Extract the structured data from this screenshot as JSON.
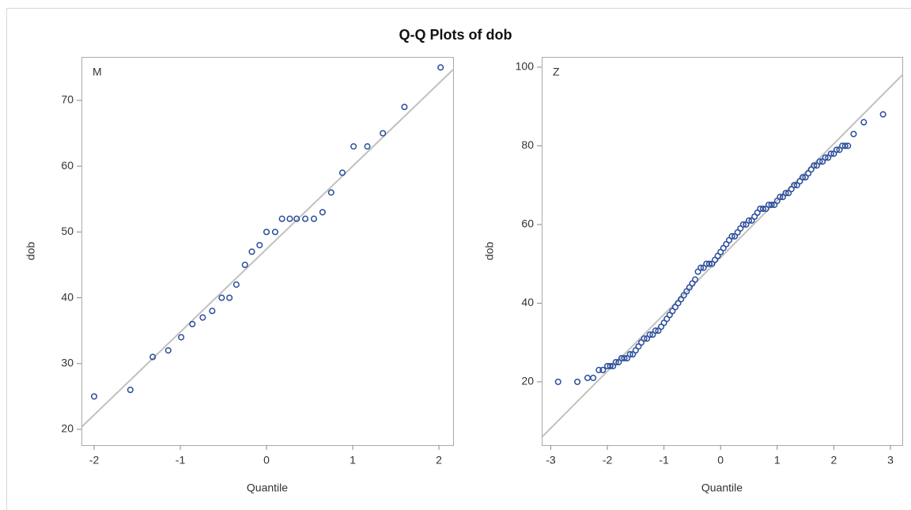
{
  "title": "Q-Q Plots of dob",
  "chart_data": [
    {
      "type": "scatter",
      "panel_label": "M",
      "x_label": "Quantile",
      "y_label": "dob",
      "color": "#2a4d9b",
      "line_color": "#c0c0c0",
      "xlim": [
        -2.147,
        2.165
      ],
      "ylim": [
        17.6,
        76.6
      ],
      "xticks": [
        -2,
        -1,
        0,
        1,
        2
      ],
      "yticks": [
        20,
        30,
        40,
        50,
        60,
        70
      ],
      "reference_line": {
        "intercept": 47.4,
        "slope": 12.6
      },
      "x": [
        -2.0,
        -1.58,
        -1.32,
        -1.14,
        -0.99,
        -0.86,
        -0.74,
        -0.63,
        -0.52,
        -0.43,
        -0.35,
        -0.25,
        -0.17,
        -0.08,
        0.0,
        0.1,
        0.18,
        0.27,
        0.35,
        0.45,
        0.55,
        0.65,
        0.75,
        0.88,
        1.01,
        1.17,
        1.35,
        1.6,
        2.02
      ],
      "values": [
        25,
        26,
        31,
        32,
        34,
        36,
        37,
        38,
        40,
        40,
        42,
        45,
        47,
        48,
        50,
        50,
        52,
        52,
        52,
        52,
        52,
        53,
        56,
        59,
        63,
        63,
        65,
        69,
        75
      ]
    },
    {
      "type": "scatter",
      "panel_label": "Z",
      "x_label": "Quantile",
      "y_label": "dob",
      "color": "#2a4d9b",
      "line_color": "#c0c0c0",
      "xlim": [
        -3.16,
        3.21
      ],
      "ylim": [
        3.9,
        102.6
      ],
      "xticks": [
        -3,
        -2,
        -1,
        0,
        1,
        2,
        3
      ],
      "yticks": [
        20,
        40,
        60,
        80,
        100
      ],
      "reference_line": {
        "intercept": 51.6,
        "slope": 14.46
      },
      "x": [
        -2.87,
        -2.53,
        -2.35,
        -2.25,
        -2.15,
        -2.08,
        -2.0,
        -1.95,
        -1.9,
        -1.85,
        -1.8,
        -1.75,
        -1.7,
        -1.65,
        -1.6,
        -1.55,
        -1.5,
        -1.45,
        -1.4,
        -1.35,
        -1.3,
        -1.25,
        -1.2,
        -1.15,
        -1.1,
        -1.05,
        -1.0,
        -0.95,
        -0.9,
        -0.85,
        -0.8,
        -0.75,
        -0.7,
        -0.65,
        -0.6,
        -0.55,
        -0.5,
        -0.45,
        -0.4,
        -0.35,
        -0.3,
        -0.25,
        -0.2,
        -0.15,
        -0.1,
        -0.05,
        0,
        0.05,
        0.1,
        0.15,
        0.2,
        0.25,
        0.3,
        0.35,
        0.4,
        0.45,
        0.5,
        0.55,
        0.6,
        0.65,
        0.7,
        0.75,
        0.8,
        0.85,
        0.9,
        0.95,
        1.0,
        1.05,
        1.1,
        1.15,
        1.2,
        1.25,
        1.3,
        1.35,
        1.4,
        1.45,
        1.5,
        1.55,
        1.6,
        1.65,
        1.7,
        1.75,
        1.8,
        1.85,
        1.9,
        1.95,
        2.0,
        2.05,
        2.1,
        2.15,
        2.2,
        2.25,
        2.35,
        2.53,
        2.87
      ],
      "values": [
        20,
        20,
        21,
        21,
        23,
        23,
        24,
        24,
        24,
        25,
        25,
        26,
        26,
        26,
        27,
        27,
        28,
        29,
        30,
        31,
        31,
        32,
        32,
        33,
        33,
        34,
        35,
        36,
        37,
        38,
        39,
        40,
        41,
        42,
        43,
        44,
        45,
        46,
        48,
        49,
        49,
        50,
        50,
        50,
        51,
        52,
        53,
        54,
        55,
        56,
        57,
        57,
        58,
        59,
        60,
        60,
        61,
        61,
        62,
        63,
        64,
        64,
        64,
        65,
        65,
        65,
        66,
        67,
        67,
        68,
        68,
        69,
        70,
        70,
        71,
        72,
        72,
        73,
        74,
        75,
        75,
        76,
        76,
        77,
        77,
        78,
        78,
        79,
        79,
        80,
        80,
        80,
        83,
        86,
        88
      ]
    }
  ]
}
